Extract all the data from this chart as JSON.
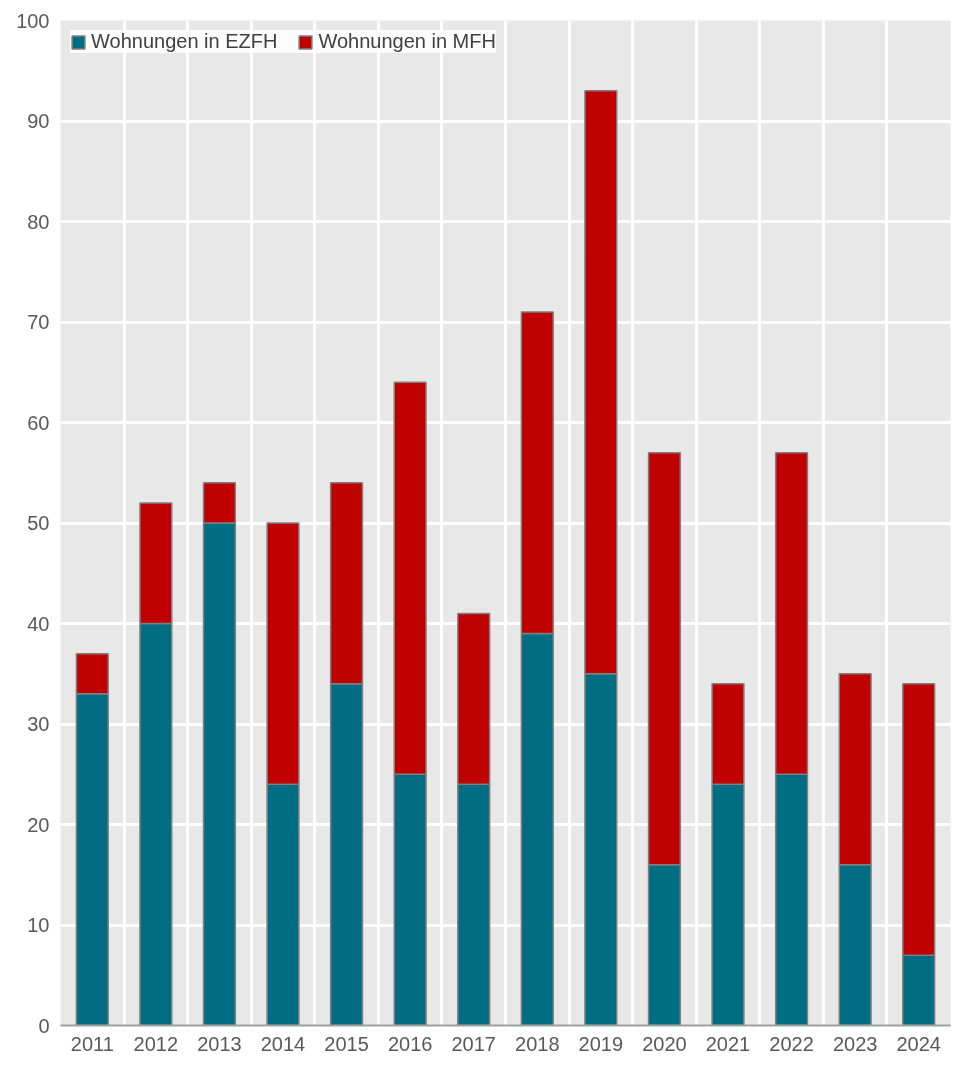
{
  "chart_data": {
    "type": "bar",
    "stacked": true,
    "categories": [
      "2011",
      "2012",
      "2013",
      "2014",
      "2015",
      "2016",
      "2017",
      "2018",
      "2019",
      "2020",
      "2021",
      "2022",
      "2023",
      "2024"
    ],
    "series": [
      {
        "name": "Wohnungen in EZFH",
        "color": "#006e82",
        "values": [
          33,
          40,
          50,
          24,
          34,
          25,
          24,
          39,
          35,
          16,
          24,
          25,
          16,
          7
        ]
      },
      {
        "name": "Wohnungen in MFH",
        "color": "#c00000",
        "values": [
          4,
          12,
          4,
          26,
          20,
          39,
          17,
          32,
          58,
          41,
          10,
          32,
          19,
          27
        ]
      }
    ],
    "ylim": [
      0,
      100
    ],
    "yticks": [
      0,
      10,
      20,
      30,
      40,
      50,
      60,
      70,
      80,
      90,
      100
    ],
    "grid": true,
    "legend": "top left"
  }
}
